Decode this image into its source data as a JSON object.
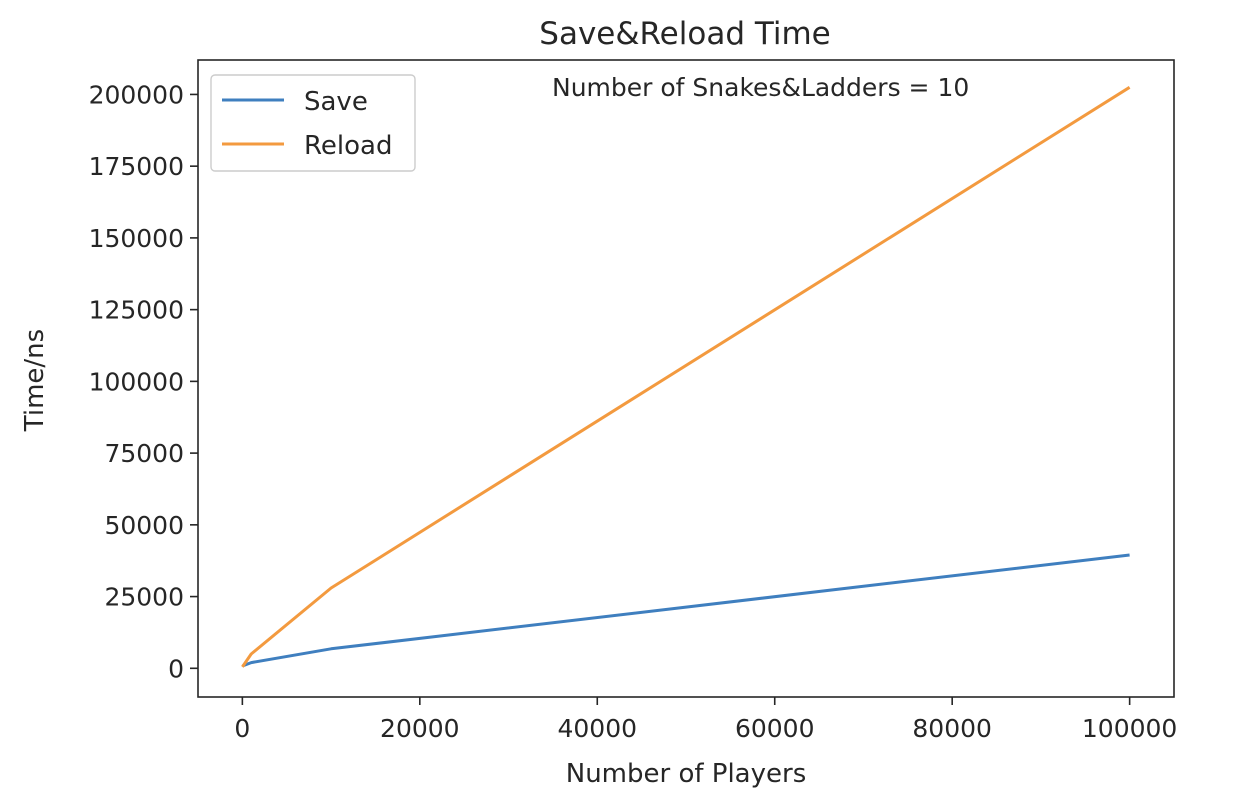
{
  "chart_data": {
    "type": "line",
    "title": "Save&Reload Time",
    "xlabel": "Number of Players",
    "ylabel": "Time/ns",
    "annotation": "Number of Snakes&Ladders = 10",
    "xlim": [
      -5000,
      105000
    ],
    "ylim": [
      -10000,
      212000
    ],
    "xticks": [
      0,
      20000,
      40000,
      60000,
      80000,
      100000
    ],
    "yticks": [
      0,
      25000,
      50000,
      75000,
      100000,
      125000,
      150000,
      175000,
      200000
    ],
    "grid": false,
    "legend_position": "top-left",
    "x": [
      0,
      1000,
      10000,
      100000
    ],
    "series": [
      {
        "name": "Save",
        "color": "#3f7fbf",
        "values": [
          800,
          2000,
          6800,
          39500
        ]
      },
      {
        "name": "Reload",
        "color": "#f39a3f",
        "values": [
          500,
          5000,
          28000,
          202500
        ]
      }
    ]
  }
}
